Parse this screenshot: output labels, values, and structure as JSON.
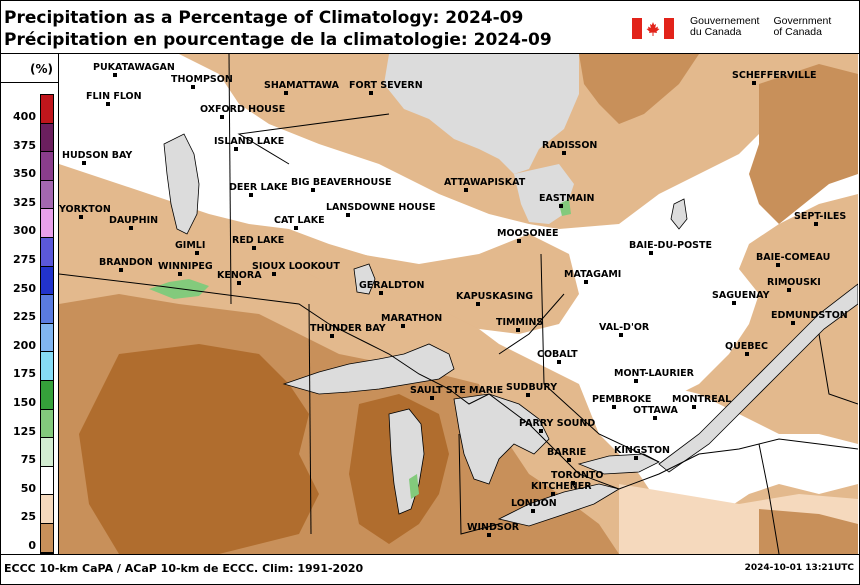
{
  "header": {
    "title_en": "Precipitation as a Percentage of Climatology: 2024-09",
    "title_fr": "Précipitation en pourcentage de la climatologie: 2024-09",
    "gov_fr": [
      "Gouvernement",
      "du Canada"
    ],
    "gov_en": [
      "Government",
      "of Canada"
    ]
  },
  "legend": {
    "unit": "(%)",
    "classes": [
      {
        "label": "400",
        "color": "#c0161c"
      },
      {
        "label": "375",
        "color": "#6b1f5e"
      },
      {
        "label": "350",
        "color": "#8a3d8c"
      },
      {
        "label": "325",
        "color": "#a467b0"
      },
      {
        "label": "300",
        "color": "#e9a0ea"
      },
      {
        "label": "275",
        "color": "#5b58d9"
      },
      {
        "label": "250",
        "color": "#2233cc"
      },
      {
        "label": "225",
        "color": "#5a7be0"
      },
      {
        "label": "200",
        "color": "#81b5f0"
      },
      {
        "label": "175",
        "color": "#86dcf5"
      },
      {
        "label": "150",
        "color": "#35a13a"
      },
      {
        "label": "125",
        "color": "#83ca7c"
      },
      {
        "label": "75",
        "color": "#d3edd1"
      },
      {
        "label": "50",
        "color": "#ffffff"
      },
      {
        "label": "25",
        "color": "#f5d9bd"
      },
      {
        "label": "0",
        "color": "#c8905a"
      }
    ],
    "bottom_color": "#b06d2e"
  },
  "map": {
    "cities": [
      {
        "name": "PUKATAWAGAN"
      },
      {
        "name": "THOMPSON"
      },
      {
        "name": "FLIN FLON"
      },
      {
        "name": "OXFORD HOUSE"
      },
      {
        "name": "SHAMATTAWA"
      },
      {
        "name": "FORT SEVERN"
      },
      {
        "name": "SCHEFFERVILLE"
      },
      {
        "name": "RADISSON"
      },
      {
        "name": "ISLAND LAKE"
      },
      {
        "name": "HUDSON BAY"
      },
      {
        "name": "DEER LAKE"
      },
      {
        "name": "BIG BEAVERHOUSE"
      },
      {
        "name": "ATTAWAPISKAT"
      },
      {
        "name": "EASTMAIN"
      },
      {
        "name": "LANSDOWNE HOUSE"
      },
      {
        "name": "YORKTON"
      },
      {
        "name": "CAT LAKE"
      },
      {
        "name": "DAUPHIN"
      },
      {
        "name": "SEPT-ILES"
      },
      {
        "name": "MOOSONEE"
      },
      {
        "name": "BAIE-DU-POSTE"
      },
      {
        "name": "RED LAKE"
      },
      {
        "name": "GIMLI"
      },
      {
        "name": "BAIE-COMEAU"
      },
      {
        "name": "BRANDON"
      },
      {
        "name": "SIOUX LOOKOUT"
      },
      {
        "name": "MATAGAMI"
      },
      {
        "name": "WINNIPEG"
      },
      {
        "name": "KENORA"
      },
      {
        "name": "RIMOUSKI"
      },
      {
        "name": "GERALDTON"
      },
      {
        "name": "KAPUSKASING"
      },
      {
        "name": "SAGUENAY"
      },
      {
        "name": "EDMUNDSTON"
      },
      {
        "name": "MARATHON"
      },
      {
        "name": "THUNDER BAY"
      },
      {
        "name": "TIMMINS"
      },
      {
        "name": "VAL-D'OR"
      },
      {
        "name": "QUEBEC"
      },
      {
        "name": "COBALT"
      },
      {
        "name": "MONT-LAURIER"
      },
      {
        "name": "SAULT STE MARIE"
      },
      {
        "name": "SUDBURY"
      },
      {
        "name": "PEMBROKE"
      },
      {
        "name": "MONTREAL"
      },
      {
        "name": "OTTAWA"
      },
      {
        "name": "PARRY SOUND"
      },
      {
        "name": "BARRIE"
      },
      {
        "name": "KINGSTON"
      },
      {
        "name": "TORONTO"
      },
      {
        "name": "KITCHENER"
      },
      {
        "name": "LONDON"
      },
      {
        "name": "WINDSOR"
      }
    ],
    "colors": {
      "water": "#dcdcdc",
      "dry_dark": "#b06d2e",
      "dry": "#c8905a",
      "dry_light": "#e3b98d",
      "near_normal": "#f5d9bd",
      "normal": "#ffffff",
      "wet": "#83ca7c"
    }
  },
  "footer": {
    "left": "ECCC 10-km CaPA / ACaP 10-km de ECCC. Clim: 1991-2020",
    "right": "2024-10-01 13:21UTC"
  }
}
